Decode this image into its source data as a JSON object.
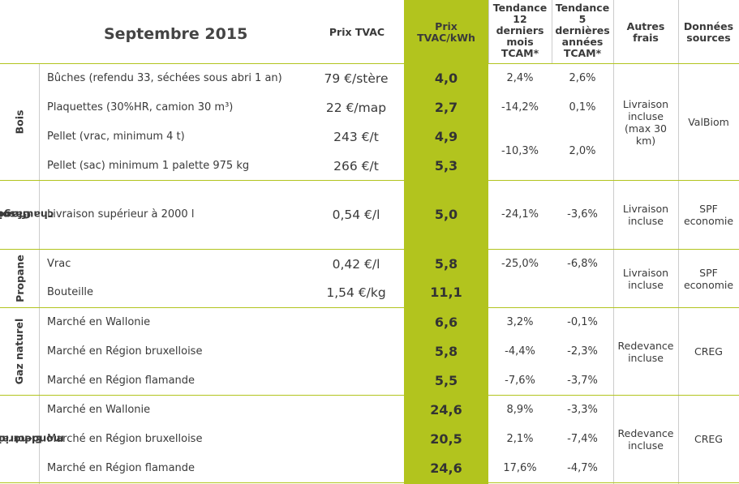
{
  "title": "Septembre 2015",
  "headers": {
    "price": "Prix TVAC",
    "kwh_line1": "Prix",
    "kwh_line2": "TVAC/kWh",
    "t12_l1": "Tendance",
    "t12_l2": "12",
    "t12_l3": "derniers",
    "t12_l4": "mois",
    "t12_l5": "TCAM*",
    "t5_l1": "Tendance",
    "t5_l2": "5",
    "t5_l3": "dernières",
    "t5_l4": "années",
    "t5_l5": "TCAM*",
    "fees_l1": "Autres",
    "fees_l2": "frais",
    "src_l1": "Données",
    "src_l2": "sources"
  },
  "categories": {
    "bois": "Bois",
    "gasoil_l1": "Gasoil",
    "gasoil_l2": "chauffage",
    "propane": "Propane",
    "gaz": "Gaz naturel",
    "elec_l1": "Electricité",
    "elec_l2": "mono-horaire"
  },
  "rows": [
    {
      "label": "Bûches (refendu 33, séchées sous abri 1 an)",
      "price": "79 €/stère",
      "kwh": "4,0",
      "t12": "2,4%",
      "t5": "2,6%"
    },
    {
      "label": "Plaquettes (30%HR, camion 30 m³)",
      "price": "22 €/map",
      "kwh": "2,7",
      "t12": "-14,2%",
      "t5": "0,1%"
    },
    {
      "label": "Pellet (vrac,  minimum 4 t)",
      "price": "243 €/t",
      "kwh": "4,9",
      "t12": "",
      "t5": ""
    },
    {
      "label": "Pellet (sac) minimum 1 palette 975 kg",
      "price": "266 €/t",
      "kwh": "5,3",
      "t12": "",
      "t5": ""
    },
    {
      "label": "Livraison supérieur à 2000 l",
      "price": "0,54 €/l",
      "kwh": "5,0",
      "t12": "-24,1%",
      "t5": "-3,6%"
    },
    {
      "label": "Vrac",
      "price": "0,42 €/l",
      "kwh": "5,8",
      "t12": "-25,0%",
      "t5": "-6,8%"
    },
    {
      "label": "Bouteille",
      "price": "1,54 €/kg",
      "kwh": "11,1",
      "t12": "",
      "t5": ""
    },
    {
      "label": "Marché en Wallonie",
      "price": "",
      "kwh": "6,6",
      "t12": "3,2%",
      "t5": "-0,1%"
    },
    {
      "label": "Marché en Région bruxelloise",
      "price": "",
      "kwh": "5,8",
      "t12": "-4,4%",
      "t5": "-2,3%"
    },
    {
      "label": "Marché en Région flamande",
      "price": "",
      "kwh": "5,5",
      "t12": "-7,6%",
      "t5": "-3,7%"
    },
    {
      "label": "Marché en Wallonie",
      "price": "",
      "kwh": "24,6",
      "t12": "8,9%",
      "t5": "-3,3%"
    },
    {
      "label": "Marché en Région bruxelloise",
      "price": "",
      "kwh": "20,5",
      "t12": "2,1%",
      "t5": "-7,4%"
    },
    {
      "label": "Marché en Région flamande",
      "price": "",
      "kwh": "24,6",
      "t12": "17,6%",
      "t5": "-4,7%"
    }
  ],
  "pellet_merged": {
    "t12": "-10,3%",
    "t5": "2,0%"
  },
  "fees": {
    "bois_l1": "Livraison",
    "bois_l2": "incluse",
    "bois_l3": "(max 30",
    "bois_l4": "km)",
    "gasoil_l1": "Livraison",
    "gasoil_l2": "incluse",
    "propane_l1": "Livraison",
    "propane_l2": "incluse",
    "gaz_l1": "Redevance",
    "gaz_l2": "incluse",
    "elec_l1": "Redevance",
    "elec_l2": "incluse"
  },
  "sources": {
    "bois": "ValBiom",
    "gasoil_l1": "SPF",
    "gasoil_l2": "economie",
    "propane_l1": "SPF",
    "propane_l2": "economie",
    "gaz": "CREG",
    "elec": "CREG"
  }
}
